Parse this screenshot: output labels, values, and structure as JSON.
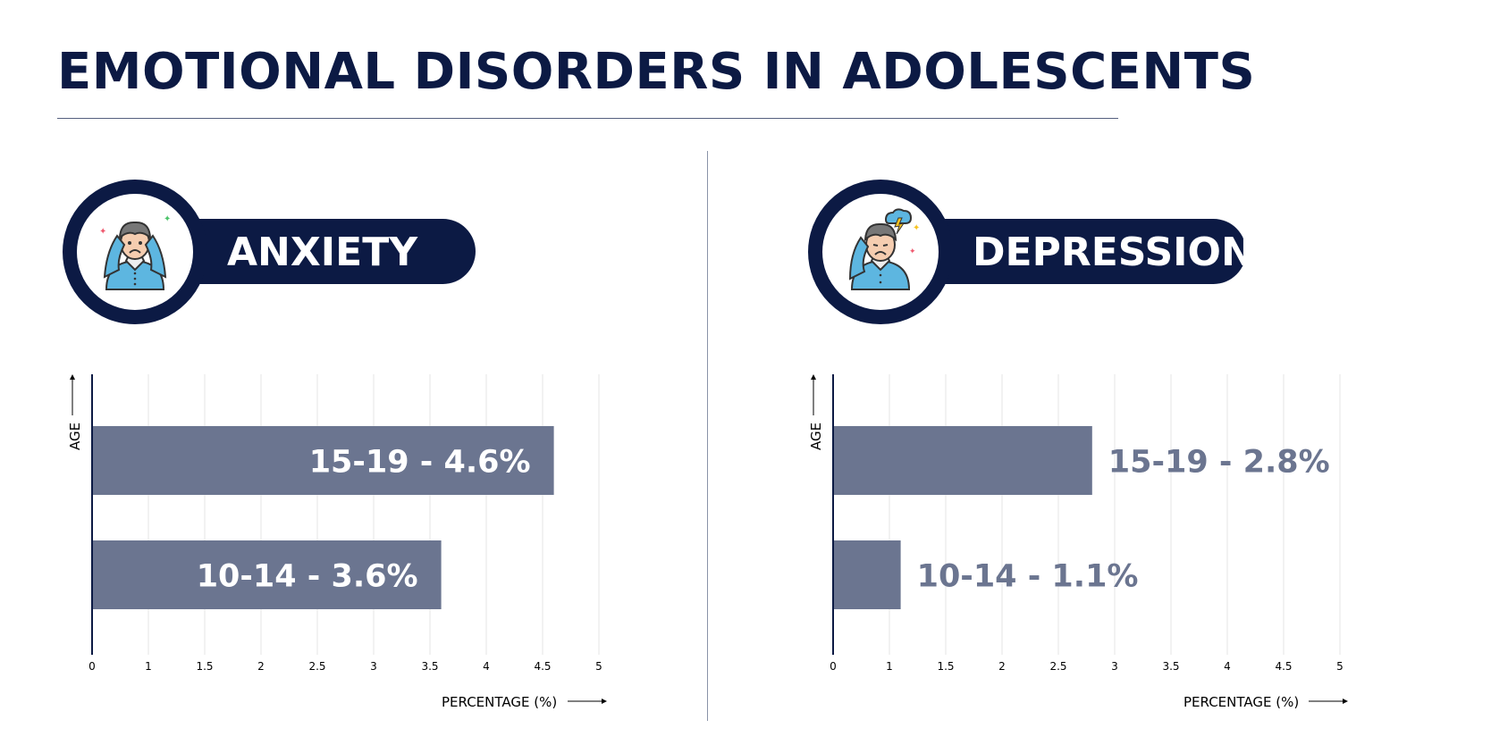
{
  "title": "EMOTIONAL DISORDERS IN ADOLESCENTS",
  "colors": {
    "navy": "#0c1a44",
    "bar": "#6b7590",
    "grid": "#e4e4e4"
  },
  "panels": [
    {
      "heading": "ANXIETY",
      "icon": "anxious-person-icon"
    },
    {
      "heading": "DEPRESSION",
      "icon": "depressed-person-icon"
    }
  ],
  "chart_data": [
    {
      "type": "bar",
      "orientation": "horizontal",
      "title": "ANXIETY",
      "xlabel": "PERCENTAGE (%)",
      "ylabel": "AGE",
      "x_ticks": [
        "0",
        "1",
        "1.5",
        "2",
        "2.5",
        "3",
        "3.5",
        "4",
        "4.5",
        "5"
      ],
      "xlim": [
        0,
        5
      ],
      "grid": true,
      "categories": [
        "15-19",
        "10-14"
      ],
      "values": [
        4.6,
        3.6
      ],
      "data_labels": [
        "15-19 - 4.6%",
        "10-14 - 3.6%"
      ],
      "label_position": "inside"
    },
    {
      "type": "bar",
      "orientation": "horizontal",
      "title": "DEPRESSION",
      "xlabel": "PERCENTAGE (%)",
      "ylabel": "AGE",
      "x_ticks": [
        "0",
        "1",
        "1.5",
        "2",
        "2.5",
        "3",
        "3.5",
        "4",
        "4.5",
        "5"
      ],
      "xlim": [
        0,
        5
      ],
      "grid": true,
      "categories": [
        "15-19",
        "10-14"
      ],
      "values": [
        2.8,
        1.1
      ],
      "data_labels": [
        "15-19 - 2.8%",
        "10-14 - 1.1%"
      ],
      "label_position": "outside"
    }
  ]
}
